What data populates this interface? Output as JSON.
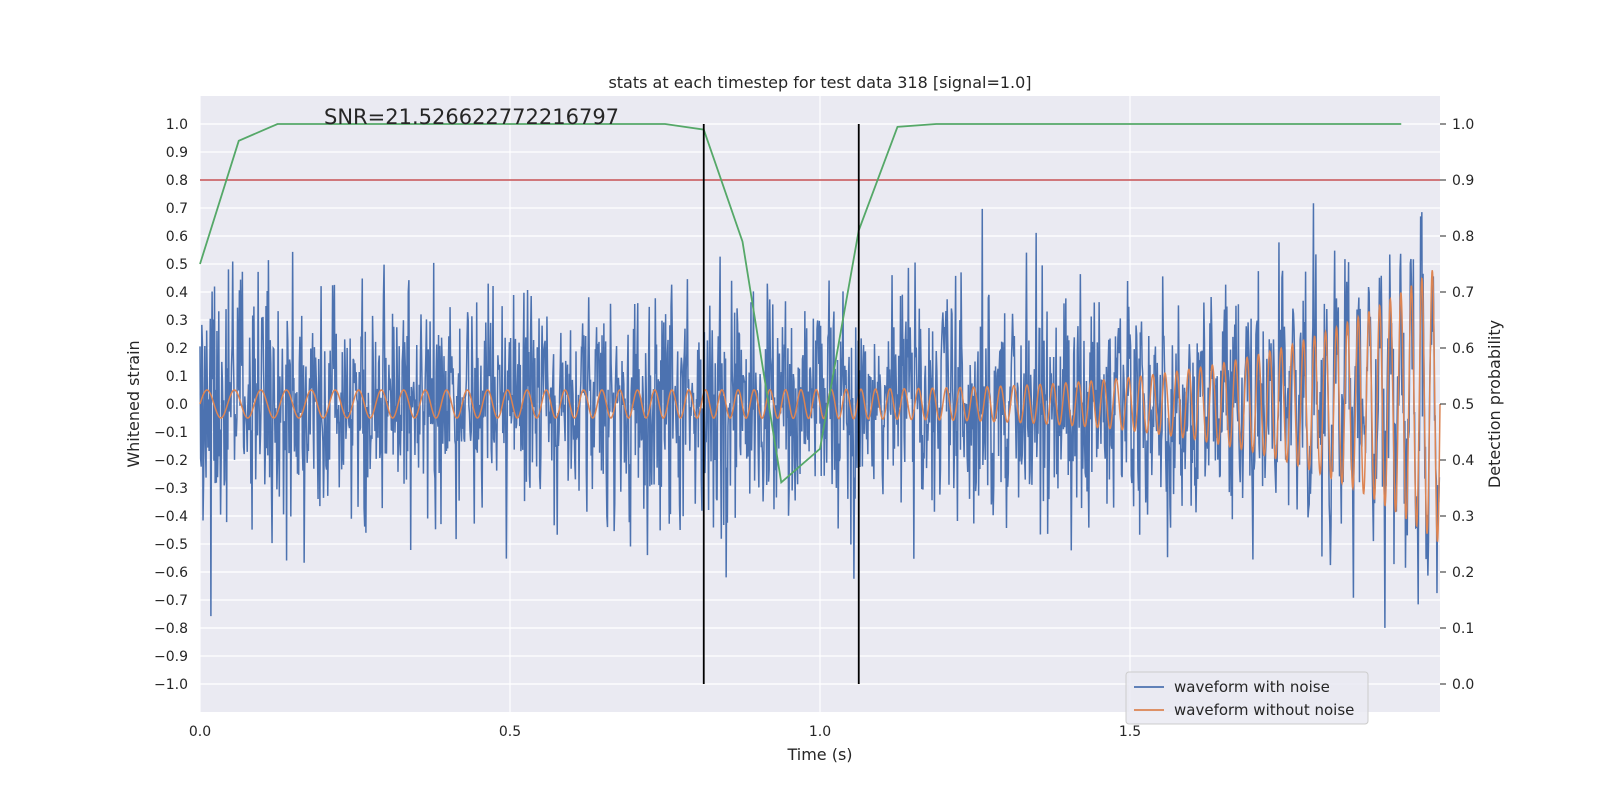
{
  "chart_data": {
    "type": "line",
    "title": "stats at each timestep for test data 318 [signal=1.0]",
    "xlabel": "Time (s)",
    "ylabel": "Whitened strain",
    "y2label": "Detection probability",
    "xlim": [
      0.0,
      2.0
    ],
    "ylim": [
      -1.1,
      1.1
    ],
    "y2lim": [
      -0.05,
      1.05
    ],
    "x_ticks": [
      "0.0",
      "0.5",
      "1.0",
      "1.5"
    ],
    "y_ticks": [
      "−1.0",
      "−0.9",
      "−0.8",
      "−0.7",
      "−0.6",
      "−0.5",
      "−0.4",
      "−0.3",
      "−0.2",
      "−0.1",
      "0.0",
      "0.1",
      "0.2",
      "0.3",
      "0.4",
      "0.5",
      "0.6",
      "0.7",
      "0.8",
      "0.9",
      "1.0"
    ],
    "y2_ticks": [
      "0.0",
      "0.1",
      "0.2",
      "0.3",
      "0.4",
      "0.5",
      "0.6",
      "0.7",
      "0.8",
      "0.9",
      "1.0"
    ],
    "grid": true,
    "legend_placement": "lower-right",
    "annotation": "SNR=21.526622772216797",
    "annotation_pos": [
      0.2,
      0.98
    ],
    "threshold": {
      "value": 0.9,
      "axis": "y2",
      "color": "#c44e52"
    },
    "vlines": {
      "x": [
        0.8125,
        1.0625
      ],
      "range": [
        0.0,
        1.0
      ],
      "axis": "y2",
      "color": "#000000"
    },
    "series": [
      {
        "name": "waveform with noise",
        "color": "#4c72b0",
        "axis": "y",
        "noise_std": 0.2,
        "note": "dense random-looking noise, samples generated over 0-2 s"
      },
      {
        "name": "waveform without noise",
        "color": "#dd8452",
        "axis": "y",
        "chirp": {
          "start_amp": 0.05,
          "end_amp": 0.5,
          "start_cycles_per_s": 22,
          "end_cycles_per_s": 60,
          "end_time": 2.0
        }
      },
      {
        "name": "",
        "color": "#55a868",
        "axis": "y2",
        "x": [
          0.0,
          0.0625,
          0.125,
          0.1875,
          0.25,
          0.3125,
          0.375,
          0.4375,
          0.5,
          0.5625,
          0.625,
          0.6875,
          0.75,
          0.8125,
          0.875,
          0.9375,
          1.0,
          1.0625,
          1.125,
          1.1875,
          1.25,
          1.3125,
          1.375,
          1.4375,
          1.5,
          1.5625,
          1.625,
          1.6875,
          1.75,
          1.8125,
          1.875,
          1.9375
        ],
        "values": [
          0.75,
          0.97,
          1.0,
          1.0,
          1.0,
          1.0,
          1.0,
          1.0,
          1.0,
          1.0,
          1.0,
          1.0,
          1.0,
          0.99,
          0.79,
          0.36,
          0.42,
          0.81,
          0.995,
          1.0,
          1.0,
          1.0,
          1.0,
          1.0,
          1.0,
          1.0,
          1.0,
          1.0,
          1.0,
          1.0,
          1.0,
          1.0
        ]
      }
    ],
    "legend": [
      "waveform with noise",
      "waveform without noise"
    ]
  }
}
